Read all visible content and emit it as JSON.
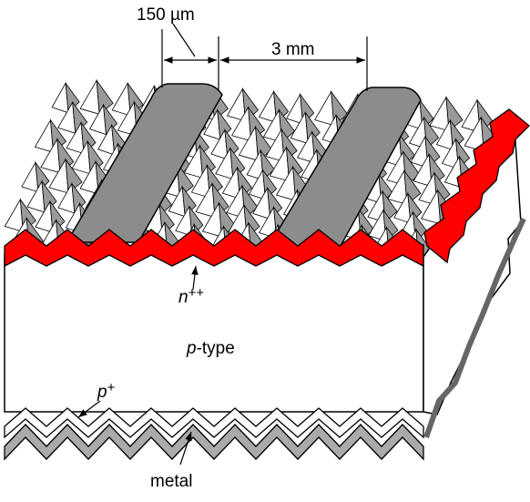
{
  "dimensions": {
    "finger_width": "150 µm",
    "finger_spacing": "3 mm"
  },
  "labels": {
    "emitter": {
      "italic": "n",
      "superscript": "++"
    },
    "base": {
      "italic": "p",
      "rest": "-type"
    },
    "back_surface_field": {
      "italic": "p",
      "superscript": "+"
    },
    "contact": "metal"
  }
}
